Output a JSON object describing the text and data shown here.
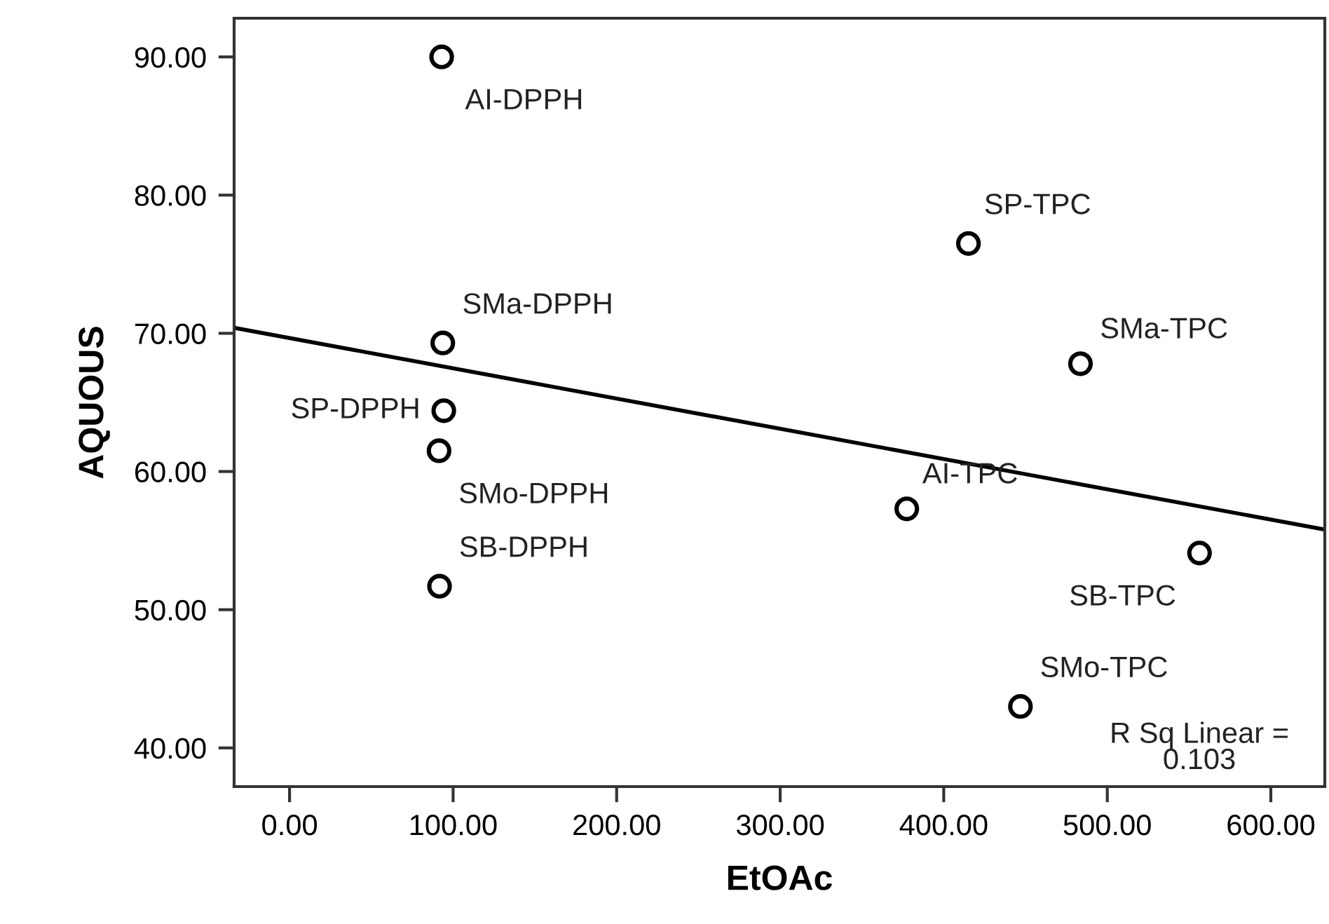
{
  "chart_data": {
    "type": "scatter",
    "xlabel": "EtOAc",
    "ylabel": "AQUOUS",
    "grid": false,
    "legend": false,
    "xlim": [
      -33.9,
      633
    ],
    "ylim": [
      37.2,
      92.8
    ],
    "xticks": [
      {
        "value": 0,
        "label": "0.00"
      },
      {
        "value": 100,
        "label": "100.00"
      },
      {
        "value": 200,
        "label": "200.00"
      },
      {
        "value": 300,
        "label": "300.00"
      },
      {
        "value": 400,
        "label": "400.00"
      },
      {
        "value": 500,
        "label": "500.00"
      },
      {
        "value": 600,
        "label": "600.00"
      }
    ],
    "yticks": [
      {
        "value": 40,
        "label": "40.00"
      },
      {
        "value": 50,
        "label": "50.00"
      },
      {
        "value": 60,
        "label": "60.00"
      },
      {
        "value": 70,
        "label": "70.00"
      },
      {
        "value": 80,
        "label": "80.00"
      },
      {
        "value": 90,
        "label": "90.00"
      }
    ],
    "series": [
      {
        "marker": "circle",
        "color": "#000000",
        "x": [
          93.0,
          93.7,
          94.3,
          91.4,
          91.7,
          415.1,
          483.6,
          377.4,
          556.4,
          446.9
        ],
        "values": [
          90.0,
          69.3,
          64.4,
          61.5,
          51.7,
          76.5,
          67.8,
          57.3,
          54.1,
          43.0
        ]
      },
      {
        "type": "line",
        "color": "#000000",
        "x": [
          -33.9,
          633
        ],
        "values": [
          70.4,
          55.8
        ]
      }
    ],
    "annotations": [
      {
        "text": "AI-DPPH",
        "x": 93.0,
        "y": 90.0
      },
      {
        "text": "SMa-DPPH",
        "x": 93.7,
        "y": 69.3
      },
      {
        "text": "SP-DPPH",
        "x": 94.3,
        "y": 64.4
      },
      {
        "text": "SMo-DPPH",
        "x": 91.4,
        "y": 61.5
      },
      {
        "text": "SB-DPPH",
        "x": 91.7,
        "y": 51.7
      },
      {
        "text": "SP-TPC",
        "x": 415.1,
        "y": 76.5
      },
      {
        "text": "SMa-TPC",
        "x": 483.6,
        "y": 67.8
      },
      {
        "text": "AI-TPC",
        "x": 377.4,
        "y": 57.3
      },
      {
        "text": "SB-TPC",
        "x": 556.4,
        "y": 54.1
      },
      {
        "text": "SMo-TPC",
        "x": 446.9,
        "y": 43.0
      },
      "R Sq Linear =\n0.103"
    ]
  }
}
